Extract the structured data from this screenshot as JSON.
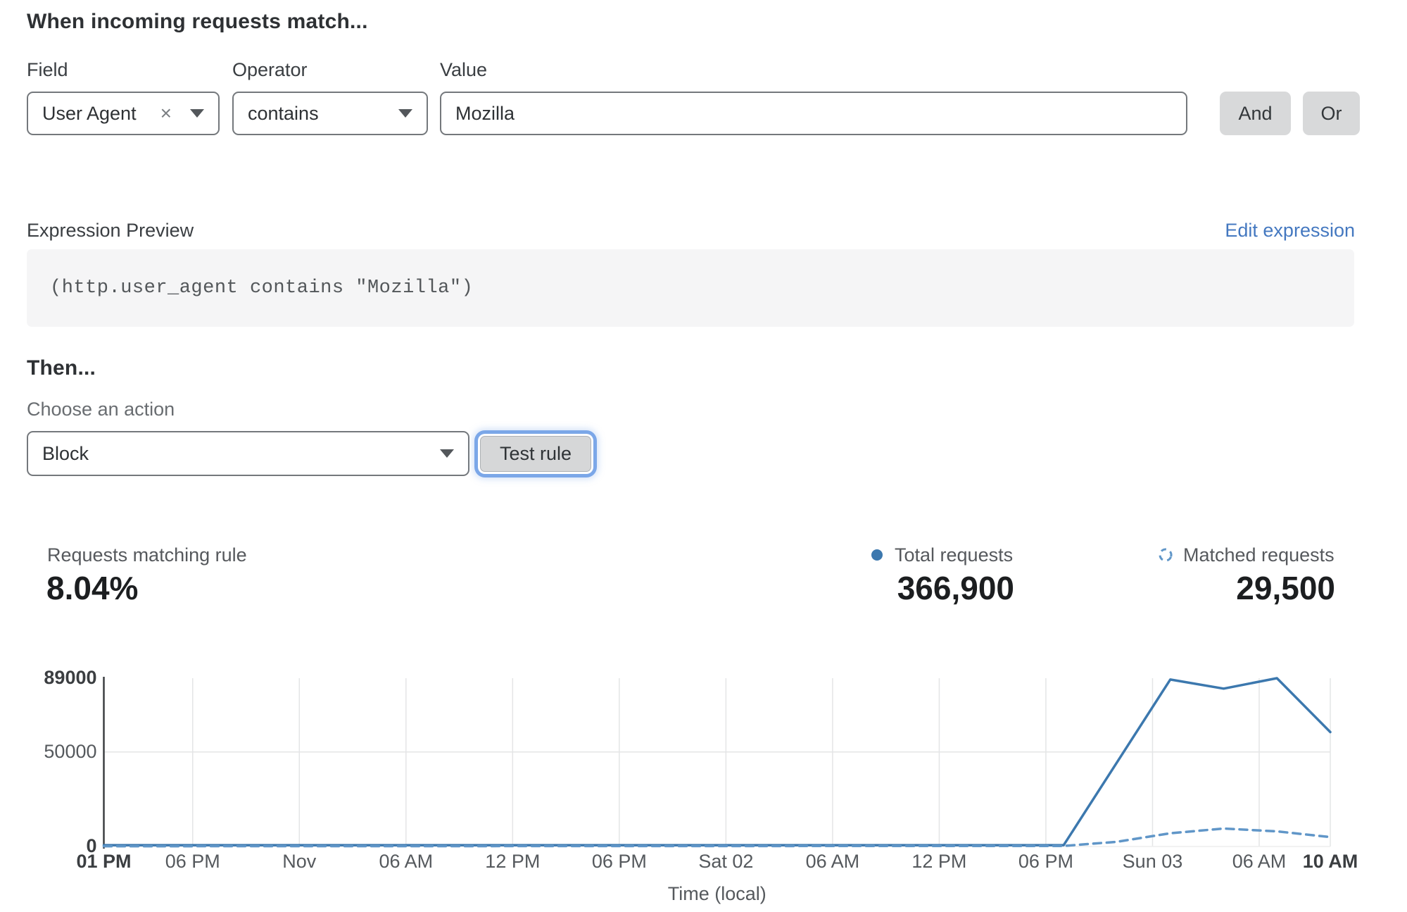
{
  "match_section": {
    "heading": "When incoming requests match...",
    "fields": {
      "field": {
        "label": "Field",
        "value": "User Agent"
      },
      "operator": {
        "label": "Operator",
        "value": "contains"
      },
      "value": {
        "label": "Value",
        "value": "Mozilla"
      }
    },
    "and_button": "And",
    "or_button": "Or"
  },
  "expression": {
    "label": "Expression Preview",
    "edit_link": "Edit expression",
    "code": "(http.user_agent contains \"Mozilla\")"
  },
  "action_section": {
    "heading": "Then...",
    "choose_label": "Choose an action",
    "action_value": "Block",
    "test_button": "Test rule"
  },
  "stats": {
    "matching": {
      "label": "Requests matching rule",
      "value": "8.04%"
    },
    "total": {
      "label": "Total requests",
      "value": "366,900"
    },
    "matched": {
      "label": "Matched requests",
      "value": "29,500"
    }
  },
  "colors": {
    "line_solid": "#3c78ae",
    "line_dashed": "#6096c8",
    "link_blue": "#4478c0",
    "focus_ring": "#7ba7e8",
    "grid": "#e4e5e6",
    "axis": "#3c3f42",
    "tick_bold": "#3b3e41",
    "tick_gray": "#55595d"
  },
  "chart_data": {
    "type": "line",
    "title": "",
    "xlabel": "Time (local)",
    "ylabel": "",
    "ylim": [
      0,
      89000
    ],
    "x_domain_hours": [
      0,
      69
    ],
    "grid": true,
    "legend_position": "top-right-stats-row",
    "y_ticks": [
      {
        "value": 0,
        "label": "0",
        "bold": true
      },
      {
        "value": 50000,
        "label": "50000",
        "bold": false
      },
      {
        "value": 89000,
        "label": "89000",
        "bold": true
      }
    ],
    "x_ticks": [
      {
        "h": 0,
        "label": "01 PM",
        "bold": true
      },
      {
        "h": 5,
        "label": "06 PM",
        "bold": false
      },
      {
        "h": 11,
        "label": "Nov",
        "bold": false
      },
      {
        "h": 17,
        "label": "06 AM",
        "bold": false
      },
      {
        "h": 23,
        "label": "12 PM",
        "bold": false
      },
      {
        "h": 29,
        "label": "06 PM",
        "bold": false
      },
      {
        "h": 35,
        "label": "Sat 02",
        "bold": false
      },
      {
        "h": 41,
        "label": "06 AM",
        "bold": false
      },
      {
        "h": 47,
        "label": "12 PM",
        "bold": false
      },
      {
        "h": 53,
        "label": "06 PM",
        "bold": false
      },
      {
        "h": 59,
        "label": "Sun 03",
        "bold": false
      },
      {
        "h": 65,
        "label": "06 AM",
        "bold": false
      },
      {
        "h": 69,
        "label": "10 AM",
        "bold": true
      }
    ],
    "series": [
      {
        "name": "Total requests",
        "style": "solid",
        "color": "#3c78ae",
        "points": [
          [
            0,
            700
          ],
          [
            54,
            700
          ],
          [
            60,
            88300
          ],
          [
            63,
            83500
          ],
          [
            66,
            89000
          ],
          [
            69,
            60500
          ]
        ]
      },
      {
        "name": "Matched requests",
        "style": "dashed",
        "color": "#6096c8",
        "points": [
          [
            0,
            150
          ],
          [
            54,
            300
          ],
          [
            57,
            2500
          ],
          [
            60,
            7000
          ],
          [
            63,
            9500
          ],
          [
            66,
            8000
          ],
          [
            69,
            5000
          ]
        ]
      }
    ]
  }
}
